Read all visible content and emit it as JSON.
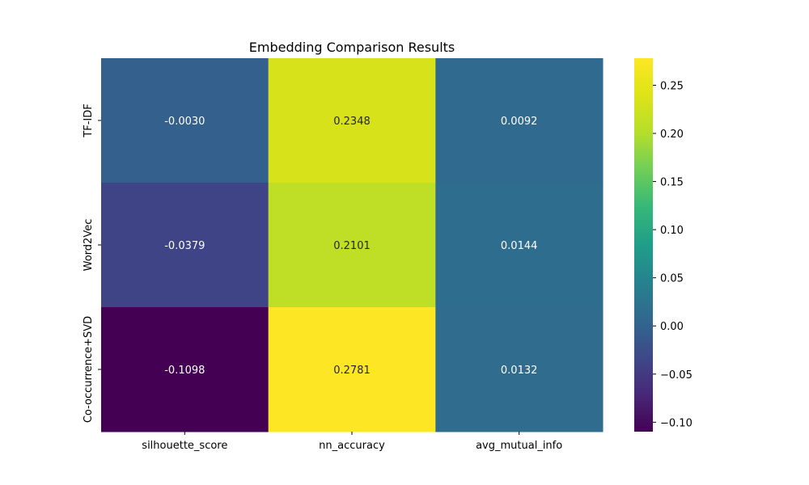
{
  "chart_data": {
    "type": "heatmap",
    "title": "Embedding Comparison Results",
    "rows": [
      "TF-IDF",
      "Word2Vec",
      "Co-occurrence+SVD"
    ],
    "columns": [
      "silhouette_score",
      "nn_accuracy",
      "avg_mutual_info"
    ],
    "values": [
      [
        -0.003,
        0.2348,
        0.0092
      ],
      [
        -0.0379,
        0.2101,
        0.0144
      ],
      [
        -0.1098,
        0.2781,
        0.0132
      ]
    ],
    "cell_labels": [
      [
        "-0.0030",
        "0.2348",
        "0.0092"
      ],
      [
        "-0.0379",
        "0.2101",
        "0.0144"
      ],
      [
        "-0.1098",
        "0.2781",
        "0.0132"
      ]
    ],
    "colormap": "viridis",
    "vmin": -0.1098,
    "vmax": 0.2781,
    "colorbar_ticks": [
      -0.1,
      -0.05,
      0.0,
      0.05,
      0.1,
      0.15,
      0.2,
      0.25
    ],
    "colorbar_tick_labels": [
      "−0.10",
      "−0.05",
      "0.00",
      "0.05",
      "0.10",
      "0.15",
      "0.20",
      "0.25"
    ],
    "legend": "colorbar-right",
    "grid": false
  }
}
